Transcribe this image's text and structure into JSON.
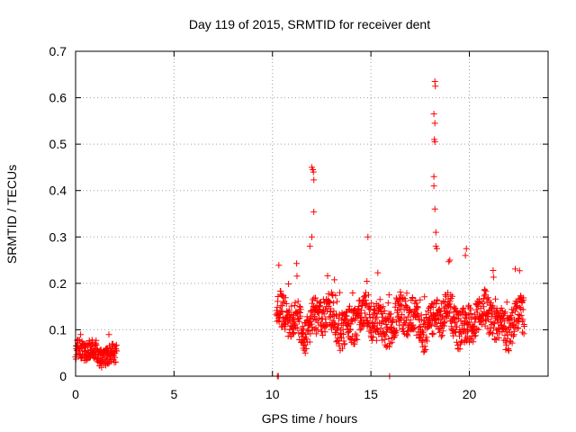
{
  "chart_data": {
    "type": "scatter",
    "title": "Day 119 of 2015, SRMTID for receiver dent",
    "xlabel": "GPS time / hours",
    "ylabel": "SRMTID / TECUs",
    "xlim": [
      0,
      24
    ],
    "ylim": [
      0,
      0.7
    ],
    "xticks": [
      0,
      5,
      10,
      15,
      20
    ],
    "yticks": [
      0,
      0.1,
      0.2,
      0.3,
      0.4,
      0.5,
      0.6,
      0.7
    ],
    "xtick_labels": [
      "0",
      "5",
      "10",
      "15",
      "20"
    ],
    "ytick_labels": [
      "0",
      "0.1",
      "0.2",
      "0.3",
      "0.4",
      "0.5",
      "0.6",
      "0.7"
    ],
    "grid": true,
    "marker": "+",
    "color": "#ff0000",
    "series": [
      {
        "name": "SRMTID",
        "segments": [
          {
            "start": 0.0,
            "end": 2.1,
            "base": 0.05,
            "spread": 0.025,
            "min": 0.015,
            "max": 0.105
          },
          {
            "start": 10.2,
            "end": 22.8,
            "base": 0.12,
            "spread": 0.05,
            "min": 0.03,
            "max": 0.3
          }
        ],
        "zero_points": [
          [
            10.25,
            0.0
          ],
          [
            10.3,
            0.0
          ],
          [
            15.95,
            0.0
          ]
        ],
        "peaks": [
          [
            12.0,
            0.45
          ],
          [
            12.05,
            0.445
          ],
          [
            12.08,
            0.44
          ],
          [
            12.1,
            0.423
          ],
          [
            12.1,
            0.354
          ],
          [
            12.0,
            0.3
          ],
          [
            11.9,
            0.28
          ],
          [
            18.25,
            0.635
          ],
          [
            18.27,
            0.625
          ],
          [
            18.2,
            0.565
          ],
          [
            18.25,
            0.545
          ],
          [
            18.22,
            0.51
          ],
          [
            18.25,
            0.505
          ],
          [
            18.2,
            0.43
          ],
          [
            18.2,
            0.41
          ],
          [
            18.25,
            0.36
          ],
          [
            18.3,
            0.31
          ],
          [
            18.3,
            0.28
          ],
          [
            18.35,
            0.275
          ],
          [
            14.85,
            0.3
          ],
          [
            19.85,
            0.275
          ],
          [
            19.8,
            0.26
          ]
        ]
      }
    ]
  }
}
